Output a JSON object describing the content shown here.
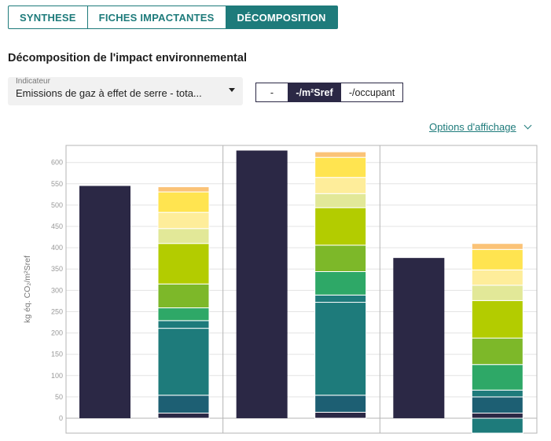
{
  "tabs": [
    {
      "label": "SYNTHESE",
      "active": false
    },
    {
      "label": "FICHES IMPACTANTES",
      "active": false
    },
    {
      "label": "DÉCOMPOSITION",
      "active": true
    }
  ],
  "section_title": "Décomposition de l'impact environnemental",
  "indicator": {
    "label": "Indicateur",
    "value": "Emissions de gaz à effet de serre - tota..."
  },
  "units": [
    {
      "label": "-",
      "active": false
    },
    {
      "label": "-/m²Sref",
      "active": true
    },
    {
      "label": "-/occupant",
      "active": false
    }
  ],
  "options_link": "Options d'affichage",
  "colors": {
    "accent": "#1e7b7b",
    "total_bar": "#2b2845"
  },
  "chart_data": {
    "type": "bar",
    "stacked": true,
    "ylabel": "kg éq. CO₂/m²Sref",
    "ylim": [
      -35,
      640
    ],
    "yticks": [
      0,
      50,
      100,
      150,
      200,
      250,
      300,
      350,
      400,
      450,
      500,
      550,
      600
    ],
    "grid": true,
    "groups": [
      {
        "total": 545,
        "segments": [
          {
            "value": 12,
            "color": "#2b2845"
          },
          {
            "value": 42,
            "color": "#1d5f73"
          },
          {
            "value": 157,
            "color": "#1e7b7b"
          },
          {
            "value": 18,
            "color": "#1e7b7b"
          },
          {
            "value": 30,
            "color": "#2ea867"
          },
          {
            "value": 56,
            "color": "#7db829"
          },
          {
            "value": 95,
            "color": "#b3cc00"
          },
          {
            "value": 35,
            "color": "#e2e898"
          },
          {
            "value": 38,
            "color": "#feed9a"
          },
          {
            "value": 48,
            "color": "#ffe450"
          },
          {
            "value": 12,
            "color": "#fbc377"
          }
        ]
      },
      {
        "total": 628,
        "segments": [
          {
            "value": 14,
            "color": "#2b2845"
          },
          {
            "value": 40,
            "color": "#1d5f73"
          },
          {
            "value": 218,
            "color": "#1e7b7b"
          },
          {
            "value": 17,
            "color": "#1e7b7b"
          },
          {
            "value": 55,
            "color": "#2ea867"
          },
          {
            "value": 62,
            "color": "#7db829"
          },
          {
            "value": 88,
            "color": "#b3cc00"
          },
          {
            "value": 33,
            "color": "#e2e898"
          },
          {
            "value": 38,
            "color": "#feed9a"
          },
          {
            "value": 47,
            "color": "#ffe450"
          },
          {
            "value": 13,
            "color": "#fbc377"
          }
        ]
      },
      {
        "total": 376,
        "segments": [
          {
            "value": -35,
            "color": "#1e7b7b"
          },
          {
            "value": 12,
            "color": "#2b2845"
          },
          {
            "value": 38,
            "color": "#1d5f73"
          },
          {
            "value": 16,
            "color": "#1e7b7b"
          },
          {
            "value": 60,
            "color": "#2ea867"
          },
          {
            "value": 62,
            "color": "#7db829"
          },
          {
            "value": 88,
            "color": "#b3cc00"
          },
          {
            "value": 36,
            "color": "#e2e898"
          },
          {
            "value": 36,
            "color": "#feed9a"
          },
          {
            "value": 48,
            "color": "#ffe450"
          },
          {
            "value": 14,
            "color": "#fbc377"
          }
        ]
      }
    ]
  }
}
